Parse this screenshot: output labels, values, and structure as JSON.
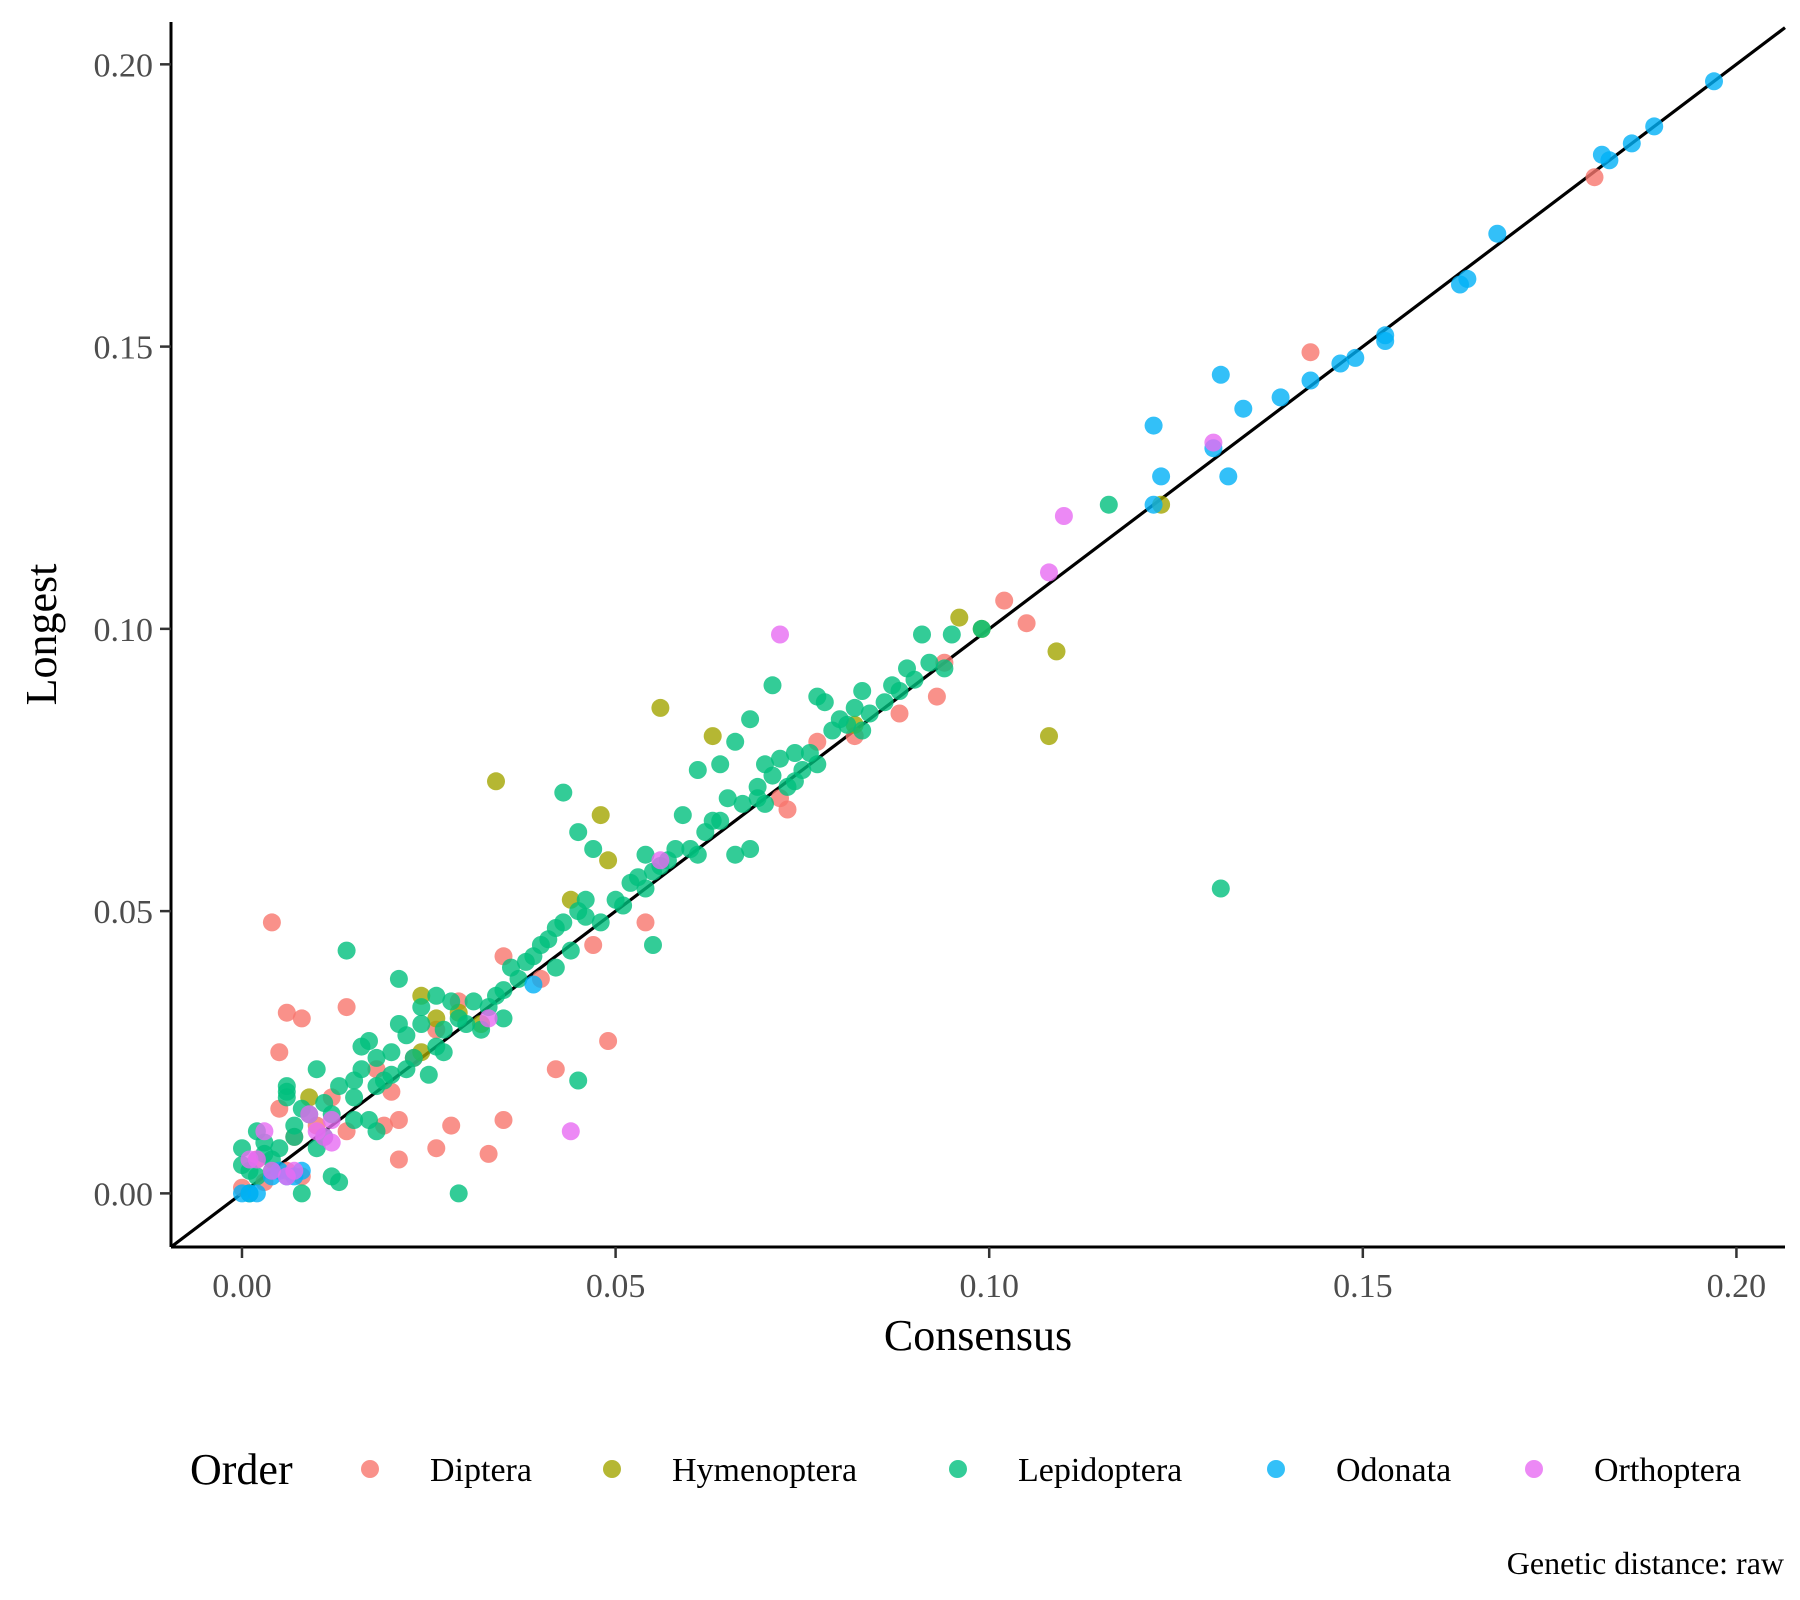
{
  "chart_data": {
    "type": "scatter",
    "title": "",
    "xlabel": "Consensus",
    "ylabel": "Longest",
    "caption": "Genetic distance: raw",
    "xlim": [
      -0.0095,
      0.2065
    ],
    "ylim": [
      -0.0095,
      0.2075
    ],
    "xticks": [
      0.0,
      0.05,
      0.1,
      0.15,
      0.2
    ],
    "yticks": [
      0.0,
      0.05,
      0.1,
      0.15,
      0.2
    ],
    "xtick_labels": [
      "0.00",
      "0.05",
      "0.10",
      "0.15",
      "0.20"
    ],
    "ytick_labels": [
      "0.00",
      "0.05",
      "0.10",
      "0.15",
      "0.20"
    ],
    "reference_line": "y = x",
    "grid": false,
    "legend": {
      "title": "Order",
      "position": "bottom"
    },
    "series": [
      {
        "name": "Diptera",
        "color": "#F8766D",
        "points": [
          [
            0.004,
            0.048
          ],
          [
            0.006,
            0.032
          ],
          [
            0.008,
            0.031
          ],
          [
            0.005,
            0.025
          ],
          [
            0.014,
            0.033
          ],
          [
            0.035,
            0.042
          ],
          [
            0.049,
            0.027
          ],
          [
            0.042,
            0.022
          ],
          [
            0.035,
            0.013
          ],
          [
            0.033,
            0.007
          ],
          [
            0.028,
            0.012
          ],
          [
            0.026,
            0.008
          ],
          [
            0.021,
            0.006
          ],
          [
            0.021,
            0.013
          ],
          [
            0.019,
            0.012
          ],
          [
            0.054,
            0.048
          ],
          [
            0.047,
            0.044
          ],
          [
            0.073,
            0.068
          ],
          [
            0.077,
            0.08
          ],
          [
            0.082,
            0.081
          ],
          [
            0.088,
            0.085
          ],
          [
            0.093,
            0.088
          ],
          [
            0.094,
            0.094
          ],
          [
            0.102,
            0.105
          ],
          [
            0.105,
            0.101
          ],
          [
            0.143,
            0.149
          ],
          [
            0.181,
            0.18
          ],
          [
            0.005,
            0.015
          ],
          [
            0.007,
            0.01
          ],
          [
            0.012,
            0.017
          ],
          [
            0.018,
            0.022
          ],
          [
            0.023,
            0.024
          ],
          [
            0.029,
            0.034
          ],
          [
            0.003,
            0.002
          ],
          [
            0.006,
            0.004
          ],
          [
            0.002,
            0.006
          ],
          [
            0.008,
            0.003
          ],
          [
            0.01,
            0.012
          ],
          [
            0.072,
            0.07
          ],
          [
            0.04,
            0.038
          ],
          [
            0.02,
            0.018
          ],
          [
            0.014,
            0.011
          ],
          [
            0.0,
            0.001
          ],
          [
            0.026,
            0.029
          ]
        ]
      },
      {
        "name": "Hymenoptera",
        "color": "#A3A500",
        "points": [
          [
            0.034,
            0.073
          ],
          [
            0.048,
            0.067
          ],
          [
            0.049,
            0.059
          ],
          [
            0.056,
            0.086
          ],
          [
            0.063,
            0.081
          ],
          [
            0.044,
            0.052
          ],
          [
            0.096,
            0.102
          ],
          [
            0.099,
            0.1
          ],
          [
            0.108,
            0.081
          ],
          [
            0.109,
            0.096
          ],
          [
            0.123,
            0.122
          ],
          [
            0.024,
            0.035
          ],
          [
            0.026,
            0.031
          ],
          [
            0.029,
            0.032
          ],
          [
            0.024,
            0.025
          ],
          [
            0.009,
            0.017
          ],
          [
            0.082,
            0.083
          ],
          [
            0.032,
            0.03
          ]
        ]
      },
      {
        "name": "Lepidoptera",
        "color": "#00BF7D",
        "points": [
          [
            0.0,
            0.005
          ],
          [
            0.0,
            0.008
          ],
          [
            0.001,
            0.004
          ],
          [
            0.002,
            0.011
          ],
          [
            0.003,
            0.009
          ],
          [
            0.004,
            0.006
          ],
          [
            0.005,
            0.008
          ],
          [
            0.006,
            0.019
          ],
          [
            0.006,
            0.018
          ],
          [
            0.006,
            0.017
          ],
          [
            0.007,
            0.01
          ],
          [
            0.007,
            0.012
          ],
          [
            0.008,
            0.015
          ],
          [
            0.008,
            0.0
          ],
          [
            0.009,
            0.014
          ],
          [
            0.01,
            0.022
          ],
          [
            0.011,
            0.016
          ],
          [
            0.012,
            0.014
          ],
          [
            0.012,
            0.003
          ],
          [
            0.013,
            0.002
          ],
          [
            0.013,
            0.019
          ],
          [
            0.014,
            0.043
          ],
          [
            0.015,
            0.017
          ],
          [
            0.015,
            0.02
          ],
          [
            0.016,
            0.022
          ],
          [
            0.016,
            0.026
          ],
          [
            0.017,
            0.013
          ],
          [
            0.017,
            0.027
          ],
          [
            0.018,
            0.024
          ],
          [
            0.018,
            0.011
          ],
          [
            0.019,
            0.02
          ],
          [
            0.02,
            0.021
          ],
          [
            0.02,
            0.025
          ],
          [
            0.021,
            0.03
          ],
          [
            0.021,
            0.038
          ],
          [
            0.022,
            0.028
          ],
          [
            0.022,
            0.022
          ],
          [
            0.023,
            0.024
          ],
          [
            0.024,
            0.033
          ],
          [
            0.024,
            0.03
          ],
          [
            0.025,
            0.021
          ],
          [
            0.026,
            0.035
          ],
          [
            0.026,
            0.026
          ],
          [
            0.027,
            0.029
          ],
          [
            0.027,
            0.025
          ],
          [
            0.028,
            0.034
          ],
          [
            0.029,
            0.031
          ],
          [
            0.029,
            0.0
          ],
          [
            0.03,
            0.03
          ],
          [
            0.031,
            0.034
          ],
          [
            0.032,
            0.029
          ],
          [
            0.033,
            0.033
          ],
          [
            0.034,
            0.035
          ],
          [
            0.035,
            0.031
          ],
          [
            0.035,
            0.036
          ],
          [
            0.036,
            0.04
          ],
          [
            0.037,
            0.038
          ],
          [
            0.038,
            0.041
          ],
          [
            0.039,
            0.042
          ],
          [
            0.04,
            0.044
          ],
          [
            0.041,
            0.045
          ],
          [
            0.042,
            0.047
          ],
          [
            0.042,
            0.04
          ],
          [
            0.043,
            0.071
          ],
          [
            0.043,
            0.048
          ],
          [
            0.044,
            0.043
          ],
          [
            0.045,
            0.05
          ],
          [
            0.045,
            0.064
          ],
          [
            0.045,
            0.02
          ],
          [
            0.046,
            0.052
          ],
          [
            0.046,
            0.049
          ],
          [
            0.047,
            0.061
          ],
          [
            0.048,
            0.048
          ],
          [
            0.05,
            0.052
          ],
          [
            0.051,
            0.051
          ],
          [
            0.052,
            0.055
          ],
          [
            0.053,
            0.056
          ],
          [
            0.054,
            0.06
          ],
          [
            0.054,
            0.054
          ],
          [
            0.055,
            0.057
          ],
          [
            0.055,
            0.044
          ],
          [
            0.056,
            0.058
          ],
          [
            0.057,
            0.059
          ],
          [
            0.058,
            0.061
          ],
          [
            0.059,
            0.067
          ],
          [
            0.06,
            0.061
          ],
          [
            0.061,
            0.075
          ],
          [
            0.061,
            0.06
          ],
          [
            0.062,
            0.064
          ],
          [
            0.063,
            0.066
          ],
          [
            0.064,
            0.076
          ],
          [
            0.064,
            0.066
          ],
          [
            0.065,
            0.07
          ],
          [
            0.066,
            0.06
          ],
          [
            0.066,
            0.08
          ],
          [
            0.067,
            0.069
          ],
          [
            0.068,
            0.061
          ],
          [
            0.068,
            0.084
          ],
          [
            0.069,
            0.07
          ],
          [
            0.069,
            0.072
          ],
          [
            0.07,
            0.076
          ],
          [
            0.07,
            0.069
          ],
          [
            0.071,
            0.09
          ],
          [
            0.071,
            0.074
          ],
          [
            0.072,
            0.077
          ],
          [
            0.073,
            0.072
          ],
          [
            0.074,
            0.078
          ],
          [
            0.074,
            0.073
          ],
          [
            0.075,
            0.075
          ],
          [
            0.076,
            0.078
          ],
          [
            0.077,
            0.088
          ],
          [
            0.077,
            0.076
          ],
          [
            0.078,
            0.087
          ],
          [
            0.079,
            0.082
          ],
          [
            0.08,
            0.084
          ],
          [
            0.081,
            0.083
          ],
          [
            0.082,
            0.086
          ],
          [
            0.083,
            0.089
          ],
          [
            0.083,
            0.082
          ],
          [
            0.084,
            0.085
          ],
          [
            0.086,
            0.087
          ],
          [
            0.087,
            0.09
          ],
          [
            0.088,
            0.089
          ],
          [
            0.089,
            0.093
          ],
          [
            0.09,
            0.091
          ],
          [
            0.091,
            0.099
          ],
          [
            0.092,
            0.094
          ],
          [
            0.094,
            0.093
          ],
          [
            0.095,
            0.099
          ],
          [
            0.099,
            0.1
          ],
          [
            0.116,
            0.122
          ],
          [
            0.131,
            0.054
          ],
          [
            0.004,
            0.004
          ],
          [
            0.002,
            0.003
          ],
          [
            0.001,
            0.0
          ],
          [
            0.01,
            0.008
          ],
          [
            0.015,
            0.013
          ],
          [
            0.003,
            0.007
          ],
          [
            0.011,
            0.01
          ],
          [
            0.018,
            0.019
          ]
        ]
      },
      {
        "name": "Odonata",
        "color": "#00B0F6",
        "points": [
          [
            0.0,
            0.0
          ],
          [
            0.001,
            0.0
          ],
          [
            0.002,
            0.0
          ],
          [
            0.005,
            0.004
          ],
          [
            0.006,
            0.003
          ],
          [
            0.007,
            0.003
          ],
          [
            0.008,
            0.004
          ],
          [
            0.004,
            0.003
          ],
          [
            0.039,
            0.037
          ],
          [
            0.122,
            0.122
          ],
          [
            0.122,
            0.136
          ],
          [
            0.123,
            0.127
          ],
          [
            0.13,
            0.132
          ],
          [
            0.131,
            0.145
          ],
          [
            0.132,
            0.127
          ],
          [
            0.134,
            0.139
          ],
          [
            0.139,
            0.141
          ],
          [
            0.143,
            0.144
          ],
          [
            0.147,
            0.147
          ],
          [
            0.149,
            0.148
          ],
          [
            0.153,
            0.152
          ],
          [
            0.153,
            0.151
          ],
          [
            0.163,
            0.161
          ],
          [
            0.164,
            0.162
          ],
          [
            0.168,
            0.17
          ],
          [
            0.182,
            0.184
          ],
          [
            0.183,
            0.183
          ],
          [
            0.186,
            0.186
          ],
          [
            0.189,
            0.189
          ],
          [
            0.197,
            0.197
          ]
        ]
      },
      {
        "name": "Orthoptera",
        "color": "#E76BF3",
        "points": [
          [
            0.001,
            0.006
          ],
          [
            0.002,
            0.006
          ],
          [
            0.003,
            0.011
          ],
          [
            0.004,
            0.004
          ],
          [
            0.006,
            0.003
          ],
          [
            0.007,
            0.004
          ],
          [
            0.009,
            0.014
          ],
          [
            0.01,
            0.011
          ],
          [
            0.012,
            0.013
          ],
          [
            0.012,
            0.009
          ],
          [
            0.033,
            0.031
          ],
          [
            0.044,
            0.011
          ],
          [
            0.056,
            0.059
          ],
          [
            0.072,
            0.099
          ],
          [
            0.108,
            0.11
          ],
          [
            0.11,
            0.12
          ],
          [
            0.13,
            0.133
          ],
          [
            0.011,
            0.01
          ]
        ]
      }
    ]
  }
}
